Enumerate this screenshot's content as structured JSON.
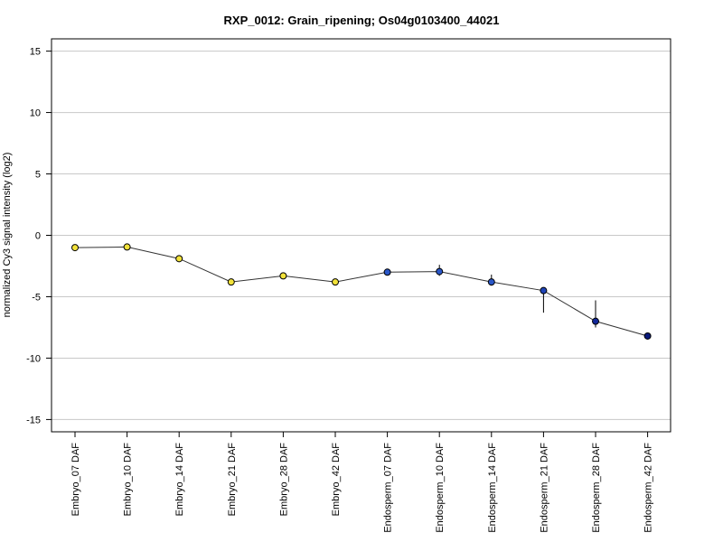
{
  "chart_data": {
    "type": "line",
    "title": "RXP_0012: Grain_ripening; Os04g0103400_44021",
    "xlabel": "",
    "ylabel": "normalized Cy3 signal intensity (log2)",
    "ylim": [
      -16,
      16
    ],
    "yticks": [
      -15,
      -10,
      -5,
      0,
      5,
      10,
      15
    ],
    "grid": "horizontal",
    "categories": [
      "Embryo_07 DAF",
      "Embryo_10 DAF",
      "Embryo_14 DAF",
      "Embryo_21 DAF",
      "Embryo_28 DAF",
      "Embryo_42 DAF",
      "Endosperm_07 DAF",
      "Endosperm_10 DAF",
      "Endosperm_14 DAF",
      "Endosperm_21 DAF",
      "Endosperm_28 DAF",
      "Endosperm_42 DAF"
    ],
    "values": [
      -1.0,
      -0.95,
      -1.9,
      -3.8,
      -3.3,
      -3.8,
      -3.0,
      -2.95,
      -3.8,
      -4.5,
      -7.0,
      -8.2
    ],
    "error_low": [
      -1.2,
      -1.05,
      -2.0,
      -3.9,
      -3.4,
      -3.9,
      -3.1,
      -3.3,
      -4.1,
      -6.3,
      -7.5,
      -8.3
    ],
    "error_high": [
      -0.8,
      -0.85,
      -1.8,
      -3.7,
      -3.2,
      -3.7,
      -2.9,
      -2.4,
      -3.2,
      -4.3,
      -5.3,
      -8.0
    ],
    "point_colors": [
      "#f2e23a",
      "#f2e23a",
      "#f2e23a",
      "#f2e23a",
      "#f2e23a",
      "#f2e23a",
      "#2a57c8",
      "#2a57c8",
      "#2a57c8",
      "#1f44b8",
      "#12289a",
      "#0a1a7a"
    ],
    "line_color": "#333333",
    "grid_color": "#c8c8c8"
  }
}
